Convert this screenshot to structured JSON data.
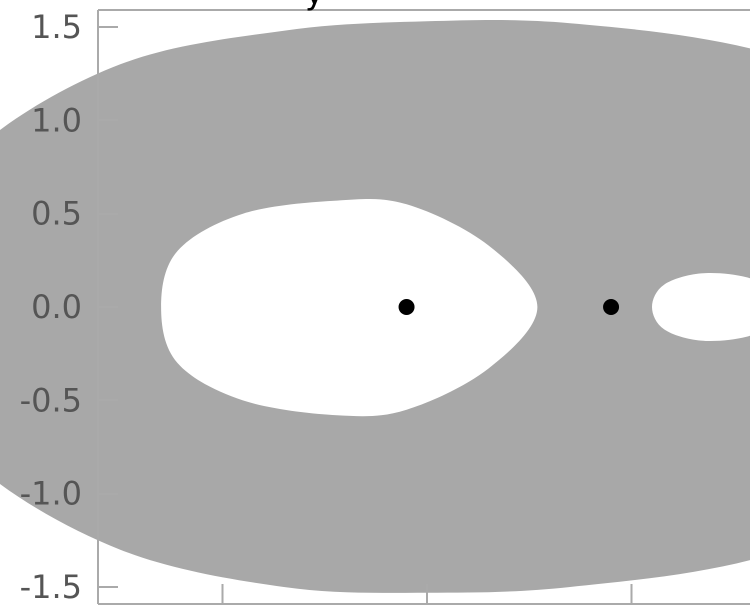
{
  "chart_data": {
    "type": "area",
    "title": "",
    "xlabel": "",
    "ylabel": "",
    "xlim": [
      -1.0,
      1.5
    ],
    "ylim": [
      -1.55,
      1.6
    ],
    "yticks": [
      1.5,
      1.0,
      0.5,
      0.0,
      -0.5,
      -1.0,
      -1.5
    ],
    "ytick_labels": [
      "1.5",
      "1.0",
      "0.5",
      "0.0",
      "-0.5",
      "-1.0",
      "-1.5"
    ],
    "xticks": [
      -0.5,
      0.0,
      0.5
    ],
    "xtick_labels": [
      "",
      "",
      ""
    ],
    "region": {
      "name": "",
      "color": "#a8a8a8",
      "outer_boundary": [
        [
          1.47,
          0.0
        ],
        [
          1.43,
          0.55
        ],
        [
          1.2,
          1.05
        ],
        [
          0.8,
          1.38
        ],
        [
          0.35,
          1.52
        ],
        [
          0.0,
          1.53
        ],
        [
          -0.35,
          1.48
        ],
        [
          -0.75,
          1.3
        ],
        [
          -1.1,
          0.85
        ],
        [
          -1.3,
          0.25
        ],
        [
          -1.3,
          -0.25
        ],
        [
          -1.1,
          -0.85
        ],
        [
          -0.75,
          -1.3
        ],
        [
          -0.35,
          -1.5
        ],
        [
          0.0,
          -1.53
        ],
        [
          0.35,
          -1.5
        ],
        [
          0.8,
          -1.35
        ],
        [
          1.2,
          -1.0
        ],
        [
          1.43,
          -0.55
        ],
        [
          1.47,
          0.0
        ]
      ],
      "holes": [
        [
          [
            0.27,
            0.0
          ],
          [
            0.15,
            0.33
          ],
          [
            -0.05,
            0.55
          ],
          [
            -0.22,
            0.57
          ],
          [
            -0.45,
            0.5
          ],
          [
            -0.61,
            0.3
          ],
          [
            -0.65,
            0.0
          ],
          [
            -0.61,
            -0.3
          ],
          [
            -0.45,
            -0.5
          ],
          [
            -0.22,
            -0.58
          ],
          [
            -0.05,
            -0.55
          ],
          [
            0.15,
            -0.33
          ],
          [
            0.27,
            0.0
          ]
        ],
        [
          [
            0.55,
            0.0
          ],
          [
            0.58,
            0.12
          ],
          [
            0.67,
            0.18
          ],
          [
            0.78,
            0.16
          ],
          [
            0.85,
            0.08
          ],
          [
            0.87,
            0.0
          ],
          [
            0.85,
            -0.08
          ],
          [
            0.78,
            -0.16
          ],
          [
            0.67,
            -0.18
          ],
          [
            0.58,
            -0.12
          ],
          [
            0.55,
            0.0
          ]
        ]
      ]
    },
    "points": {
      "x": [
        -0.05,
        0.45
      ],
      "y": [
        0.0,
        0.0
      ],
      "color": "#000000"
    },
    "top_text_fragment": "y",
    "colors": {
      "axes": "#aaaaaa",
      "tick_text": "#555555",
      "fill": "#a8a8a8",
      "hole": "#ffffff",
      "point": "#000000"
    },
    "grid": false,
    "legend": "none"
  }
}
